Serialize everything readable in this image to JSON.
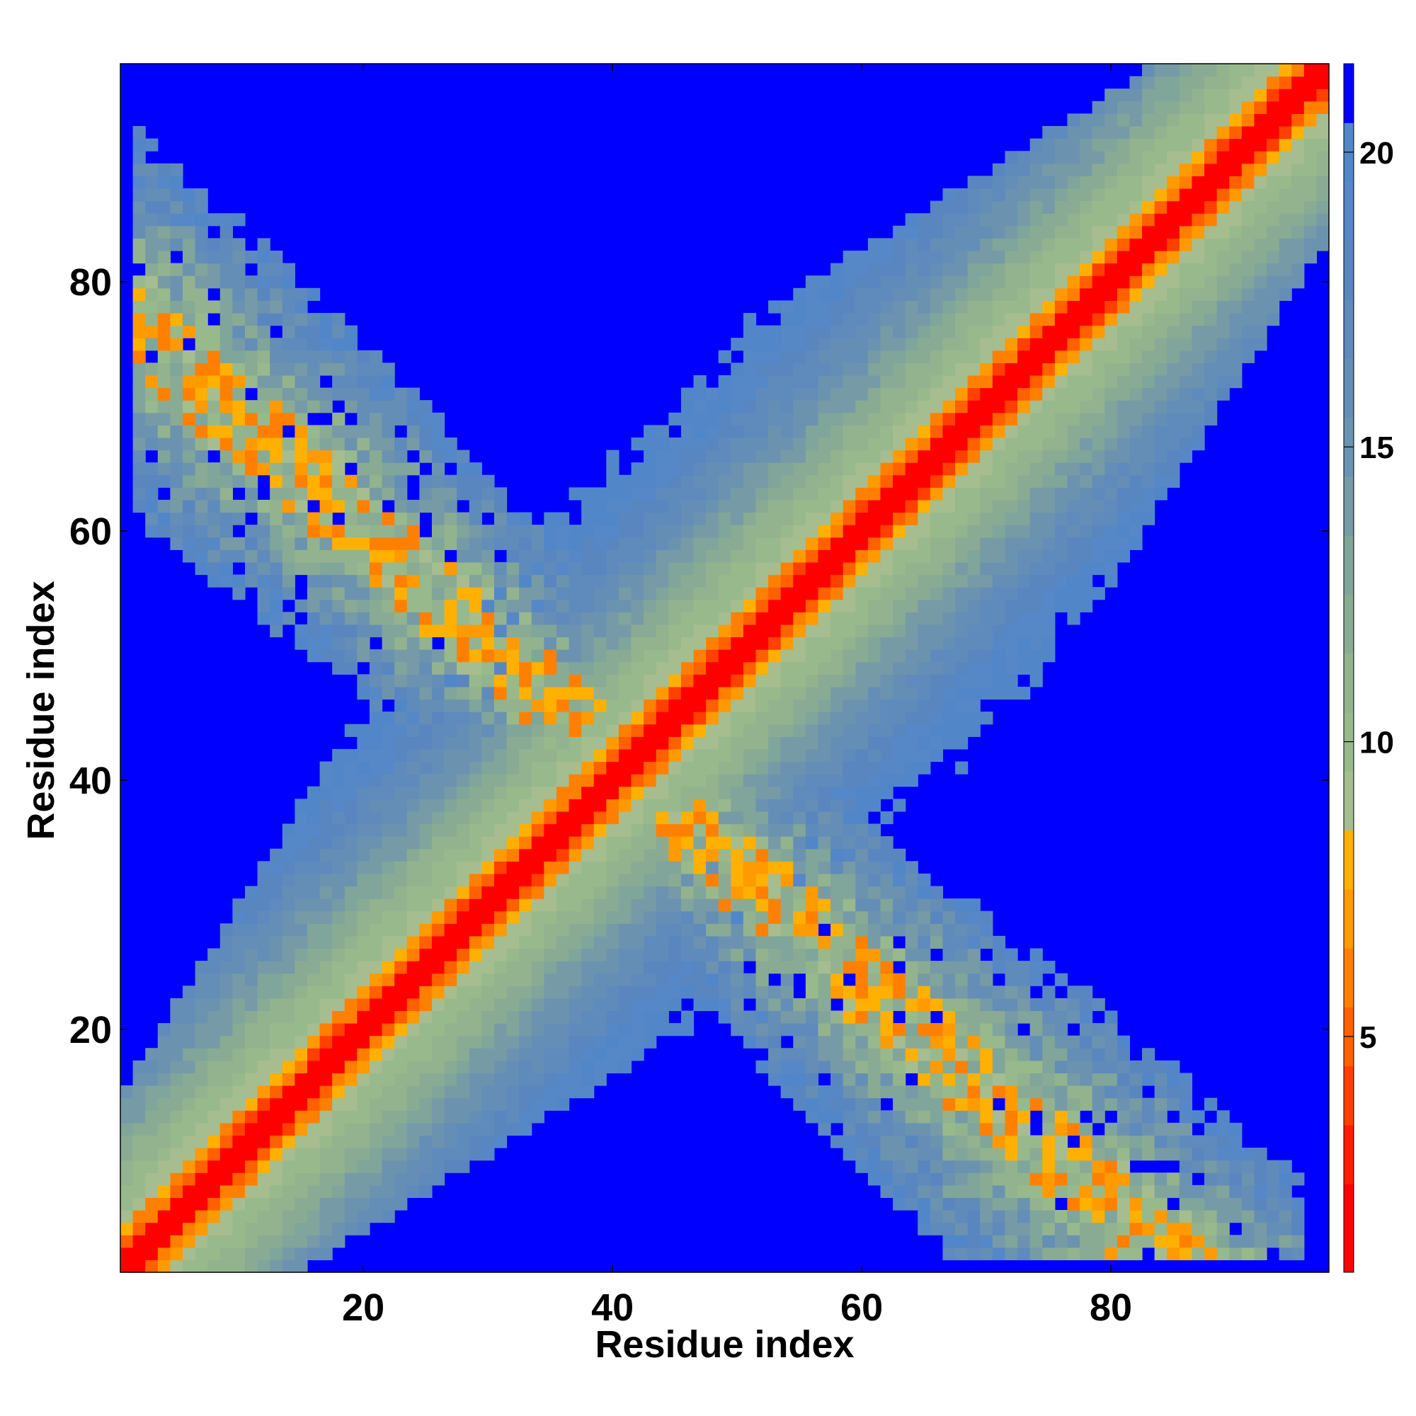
{
  "chart_data": {
    "type": "heatmap",
    "title": "",
    "xlabel": "Residue index",
    "ylabel": "Residue index",
    "n_residues": 97,
    "xlim": [
      1,
      97
    ],
    "ylim": [
      1,
      97
    ],
    "x_ticks": [
      20,
      40,
      60,
      80
    ],
    "y_ticks": [
      20,
      40,
      60,
      80
    ],
    "x_tick_labels": [
      "20",
      "40",
      "60",
      "80"
    ],
    "y_tick_labels": [
      "20",
      "40",
      "60",
      "80"
    ],
    "grid": false,
    "diagonal_band": {
      "description_values": [
        0,
        21
      ]
    },
    "colorbar": {
      "range": [
        1,
        21.5
      ],
      "ticks": [
        5,
        10,
        15,
        20
      ],
      "tick_labels": [
        "5",
        "10",
        "15",
        "20"
      ],
      "placement": "right",
      "levels": [
        {
          "max": 2.5,
          "color": "#ff0000"
        },
        {
          "max": 3.5,
          "color": "#ff1e00"
        },
        {
          "max": 4.5,
          "color": "#ff4000"
        },
        {
          "max": 5.5,
          "color": "#ff6000"
        },
        {
          "max": 6.5,
          "color": "#ff8000"
        },
        {
          "max": 7.5,
          "color": "#ff9a00"
        },
        {
          "max": 8.5,
          "color": "#ffb000"
        },
        {
          "max": 9.5,
          "color": "#a6bd8f"
        },
        {
          "max": 10.5,
          "color": "#98b98c"
        },
        {
          "max": 11.5,
          "color": "#93b38f"
        },
        {
          "max": 12.5,
          "color": "#8aab93"
        },
        {
          "max": 13.5,
          "color": "#80a59a"
        },
        {
          "max": 14.5,
          "color": "#769ba6"
        },
        {
          "max": 15.5,
          "color": "#6b93b0"
        },
        {
          "max": 16.5,
          "color": "#648eb6"
        },
        {
          "max": 17.5,
          "color": "#5f8abc"
        },
        {
          "max": 18.5,
          "color": "#5a86c0"
        },
        {
          "max": 19.5,
          "color": "#5687c6"
        },
        {
          "max": 20.5,
          "color": "#5187c8"
        },
        {
          "max": 21.5,
          "color": "#0000ff"
        }
      ]
    },
    "background_color": "#0000ff",
    "pattern": {
      "description": "Distance map: red main diagonal, anti-diagonal arm of contacts crossing near residue 40"
    }
  }
}
